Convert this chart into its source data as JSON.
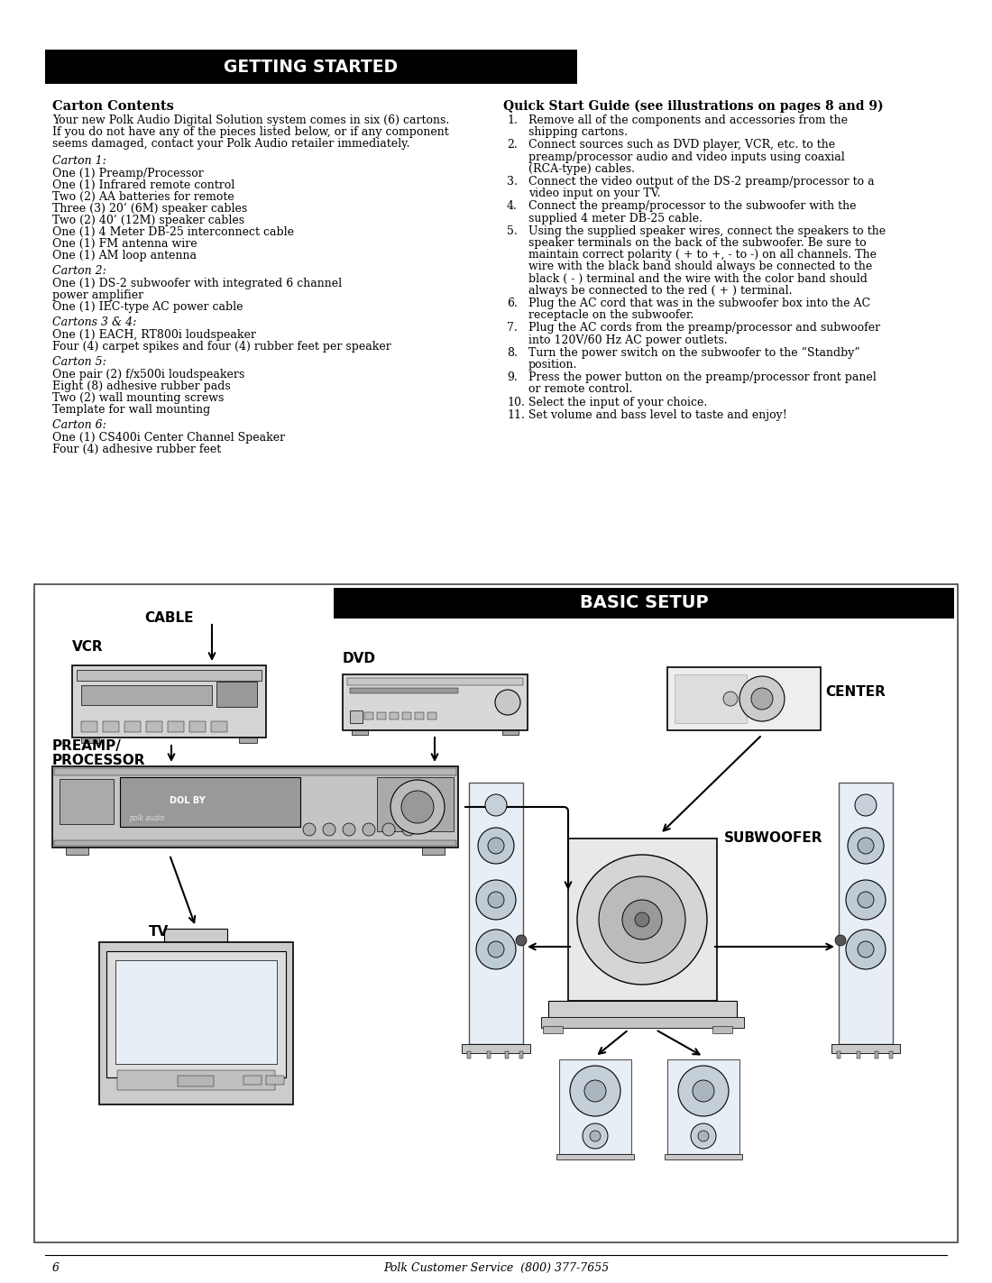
{
  "title": "GETTING STARTED",
  "footer_page": "6",
  "footer_center": "Polk Customer Service  (800) 377-7655",
  "carton_contents_title": "Carton Contents",
  "carton_contents_intro": [
    "Your new Polk Audio Digital Solution system comes in six (6) cartons.",
    "If you do not have any of the pieces listed below, or if any component",
    "seems damaged, contact your Polk Audio retailer immediately."
  ],
  "carton_items": [
    {
      "label": "Carton 1:",
      "items": [
        "One (1) Preamp/Processor",
        "One (1) Infrared remote control",
        "Two (2) AA batteries for remote",
        "Three (3) 20’ (6M) speaker cables",
        "Two (2) 40’ (12M) speaker cables",
        "One (1) 4 Meter DB-25 interconnect cable",
        "One (1) FM antenna wire",
        "One (1) AM loop antenna"
      ]
    },
    {
      "label": "Carton 2:",
      "items": [
        "One (1) DS-2 subwoofer with integrated 6 channel",
        "power amplifier",
        "One (1) IEC-type AC power cable"
      ]
    },
    {
      "label": "Cartons 3 & 4:",
      "items": [
        "One (1) EACH, RT800i loudspeaker",
        "Four (4) carpet spikes and four (4) rubber feet per speaker"
      ]
    },
    {
      "label": "Carton 5:",
      "items": [
        "One pair (2) f/x500i loudspeakers",
        "Eight (8) adhesive rubber pads",
        "Two (2) wall mounting screws",
        "Template for wall mounting"
      ]
    },
    {
      "label": "Carton 6:",
      "items": [
        "One (1) CS400i Center Channel Speaker",
        "Four (4) adhesive rubber feet"
      ]
    }
  ],
  "quick_start_title": "Quick Start Guide (see illustrations on pages 8 and 9)",
  "quick_start_items": [
    [
      "Remove all of the components and accessories from the",
      "shipping cartons."
    ],
    [
      "Connect sources such as DVD player, VCR, etc. to the",
      "preamp/processor audio and video inputs using coaxial",
      "(RCA-type) cables."
    ],
    [
      "Connect the video output of the DS-2 preamp/processor to a",
      "video input on your TV."
    ],
    [
      "Connect the preamp/processor to the subwoofer with the",
      "supplied 4 meter DB-25 cable."
    ],
    [
      "Using the supplied speaker wires, connect the speakers to the",
      "speaker terminals on the back of the subwoofer. Be sure to",
      "maintain correct polarity ( + to +, - to -) on all channels. The",
      "wire with the black band should always be connected to the",
      "black ( - ) terminal and the wire with the color band should",
      "always be connected to the red ( + ) terminal."
    ],
    [
      "Plug the AC cord that was in the subwoofer box into the AC",
      "receptacle on the subwoofer."
    ],
    [
      "Plug the AC cords from the preamp/processor and subwoofer",
      "into 120V/60 Hz AC power outlets."
    ],
    [
      "Turn the power switch on the subwoofer to the “Standby”",
      "position."
    ],
    [
      "Press the power button on the preamp/processor front panel",
      "or remote control."
    ],
    [
      "Select the input of your choice."
    ],
    [
      "Set volume and bass level to taste and enjoy!"
    ]
  ],
  "basic_setup_title": "BASIC SETUP"
}
